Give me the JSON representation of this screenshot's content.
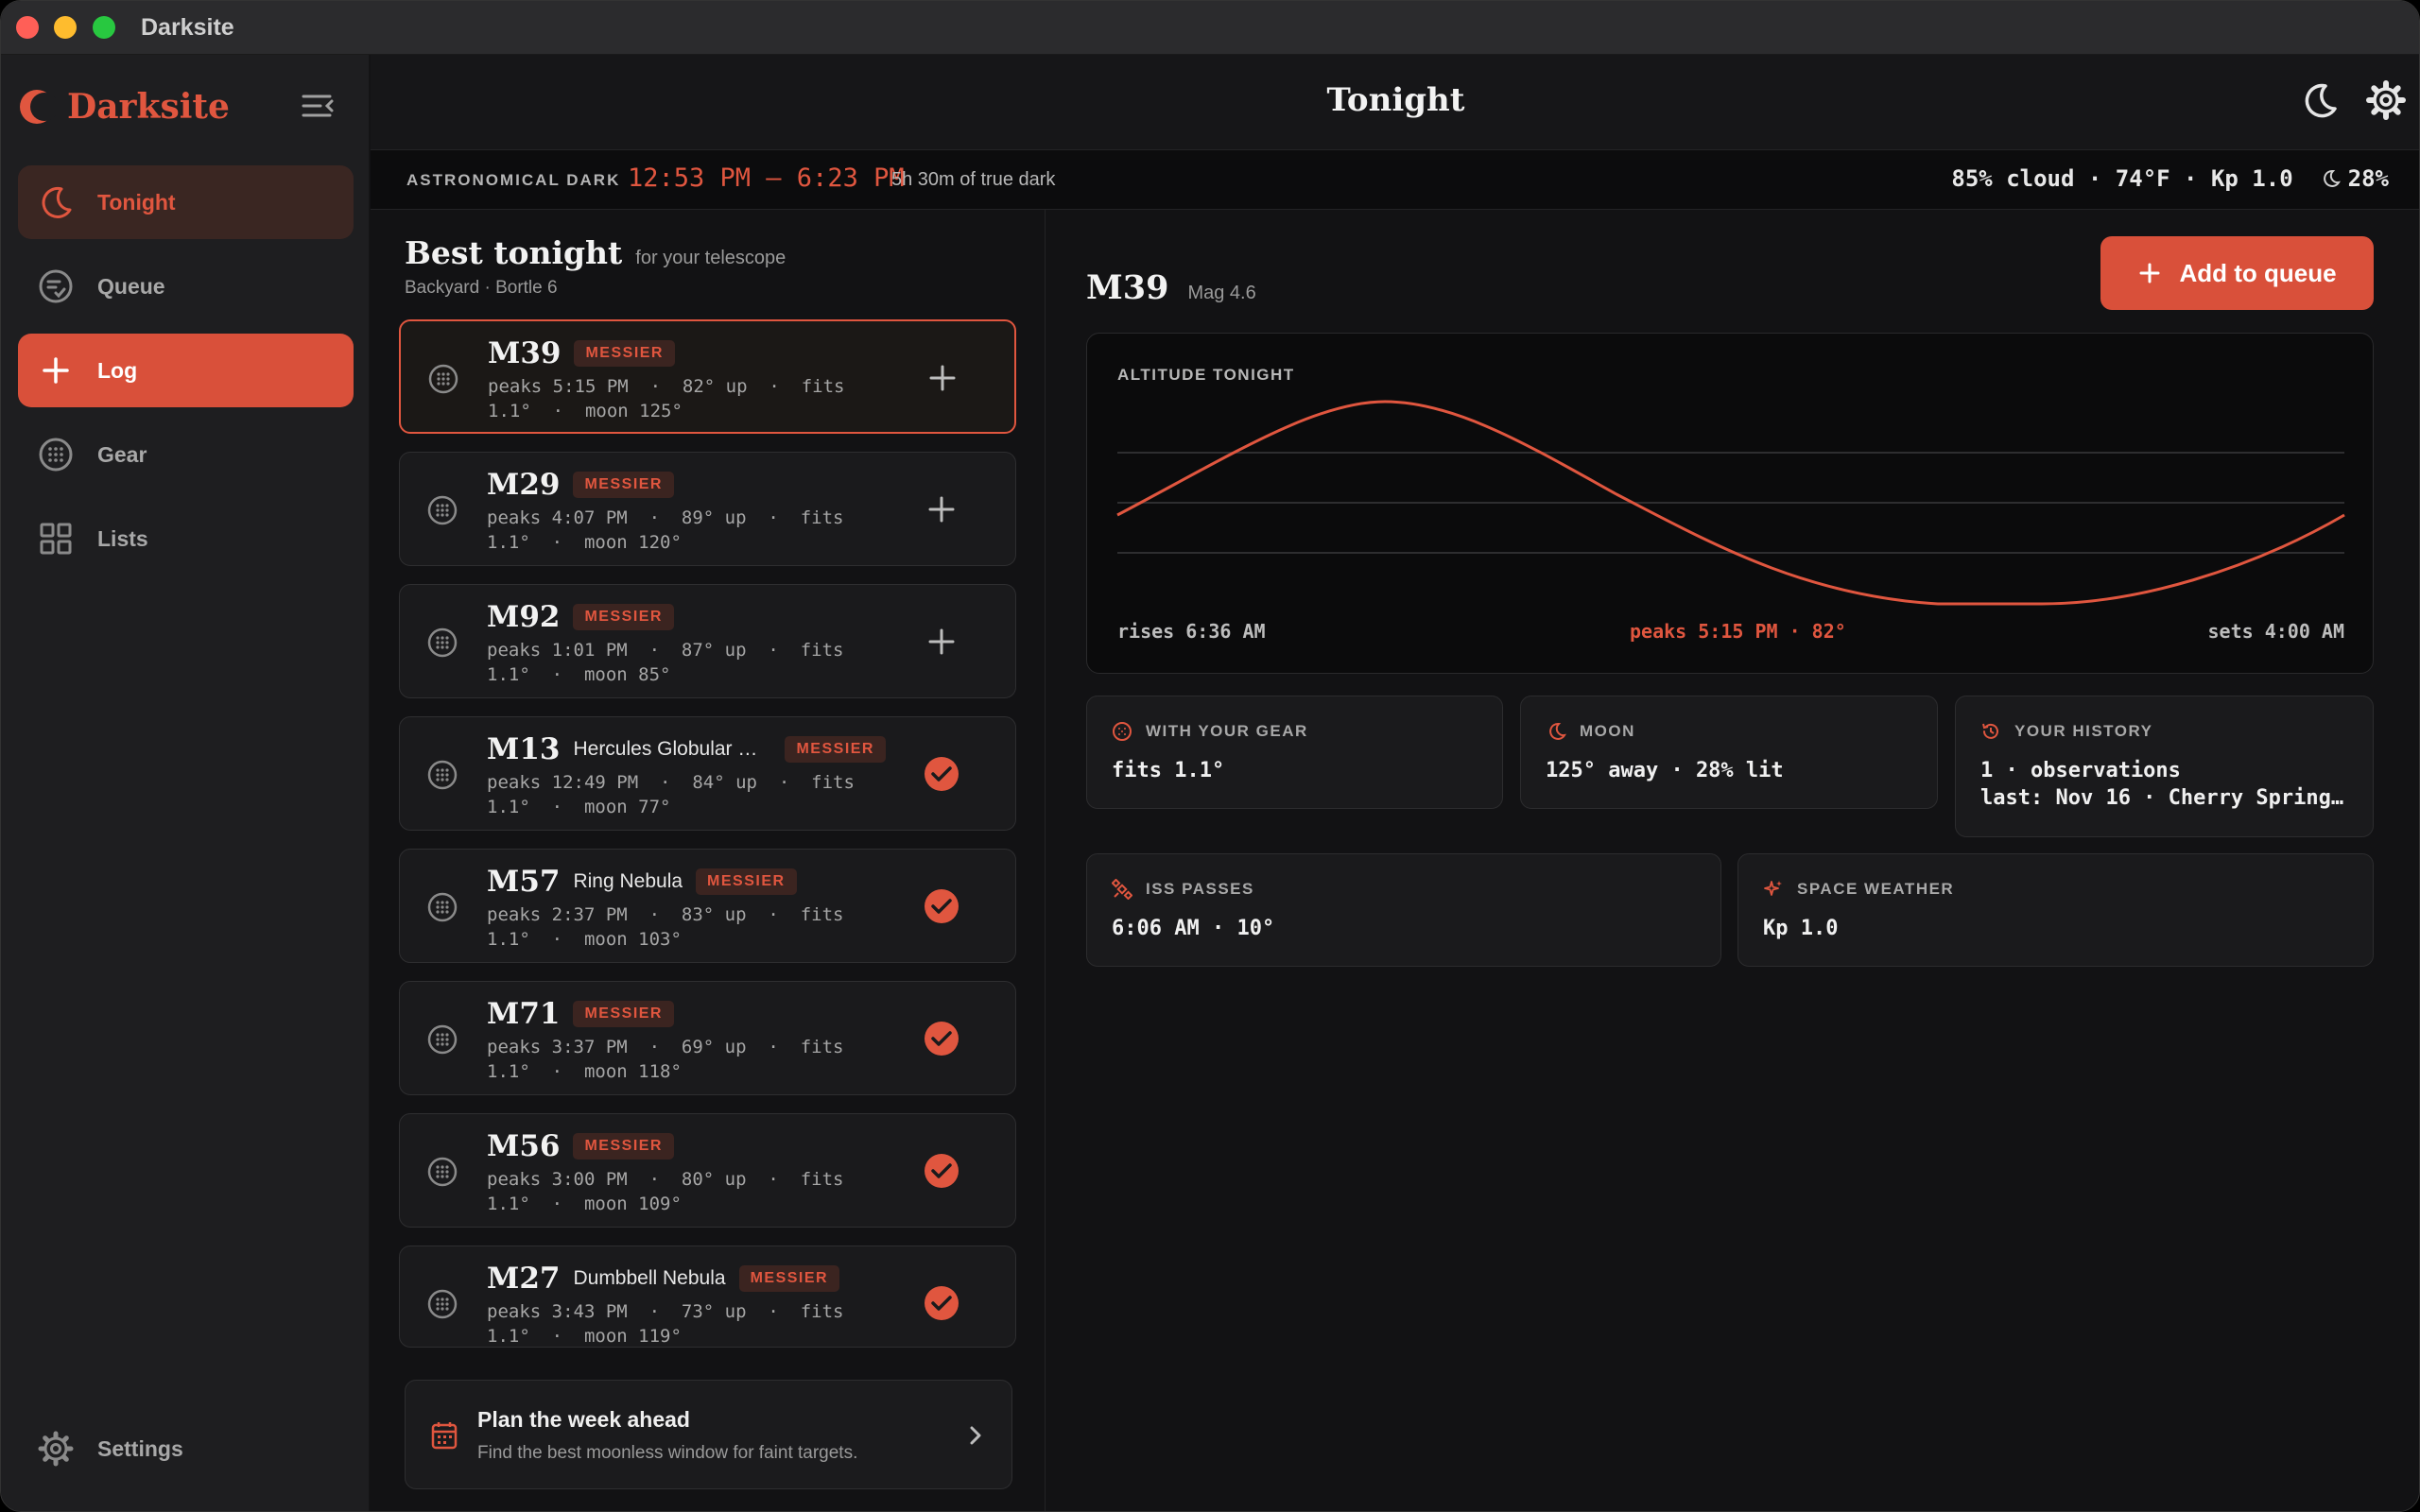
{
  "window": {
    "title": "Darksite"
  },
  "sidebar": {
    "brand": "Darksite",
    "items": [
      {
        "label": "Tonight",
        "icon": "moon-icon"
      },
      {
        "label": "Queue",
        "icon": "queue-icon"
      },
      {
        "label": "Log",
        "icon": "plus-icon"
      },
      {
        "label": "Gear",
        "icon": "globe-icon"
      },
      {
        "label": "Lists",
        "icon": "grid-icon"
      }
    ],
    "settings_label": "Settings"
  },
  "header": {
    "title": "Tonight"
  },
  "darkness": {
    "label": "ASTRONOMICAL DARK",
    "window": "12:53 PM – 6:23 PM",
    "duration": "5h 30m of true dark",
    "weather": "85% cloud · 74°F · Kp 1.0",
    "moon_pct": "28%"
  },
  "best": {
    "title": "Best tonight",
    "subtitle": "for your telescope",
    "location": "Backyard · Bortle 6",
    "targets": [
      {
        "name": "M39",
        "common": "",
        "badge": "MESSIER",
        "line1": "peaks 5:15 PM  ·  82° up  ·  fits",
        "line2": "1.1°  ·  moon 125°",
        "status": "add",
        "selected": true
      },
      {
        "name": "M29",
        "common": "",
        "badge": "MESSIER",
        "line1": "peaks 4:07 PM  ·  89° up  ·  fits",
        "line2": "1.1°  ·  moon 120°",
        "status": "add",
        "selected": false
      },
      {
        "name": "M92",
        "common": "",
        "badge": "MESSIER",
        "line1": "peaks 1:01 PM  ·  87° up  ·  fits",
        "line2": "1.1°  ·  moon 85°",
        "status": "add",
        "selected": false
      },
      {
        "name": "M13",
        "common": "Hercules Globular Cl...",
        "badge": "MESSIER",
        "line1": "peaks 12:49 PM  ·  84° up  ·  fits",
        "line2": "1.1°  ·  moon 77°",
        "status": "done",
        "selected": false
      },
      {
        "name": "M57",
        "common": "Ring Nebula",
        "badge": "MESSIER",
        "line1": "peaks 2:37 PM  ·  83° up  ·  fits",
        "line2": "1.1°  ·  moon 103°",
        "status": "done",
        "selected": false
      },
      {
        "name": "M71",
        "common": "",
        "badge": "MESSIER",
        "line1": "peaks 3:37 PM  ·  69° up  ·  fits",
        "line2": "1.1°  ·  moon 118°",
        "status": "done",
        "selected": false
      },
      {
        "name": "M56",
        "common": "",
        "badge": "MESSIER",
        "line1": "peaks 3:00 PM  ·  80° up  ·  fits",
        "line2": "1.1°  ·  moon 109°",
        "status": "done",
        "selected": false
      },
      {
        "name": "M27",
        "common": "Dumbbell Nebula",
        "badge": "MESSIER",
        "line1": "peaks 3:43 PM  ·  73° up  ·  fits",
        "line2": "1.1°  ·  moon 119°",
        "status": "done",
        "selected": false
      }
    ]
  },
  "plan": {
    "title": "Plan the week ahead",
    "subtitle": "Find the best moonless window for faint targets."
  },
  "detail": {
    "name": "M39",
    "mag": "Mag 4.6",
    "add_label": "Add to queue",
    "chart_label": "ALTITUDE TONIGHT",
    "rises": "rises 6:36 AM",
    "peaks": "peaks 5:15 PM · 82°",
    "sets": "sets 4:00 AM",
    "gear": {
      "label": "WITH YOUR GEAR",
      "value": "fits 1.1°"
    },
    "moon": {
      "label": "MOON",
      "value": "125° away · 28% lit"
    },
    "history": {
      "label": "YOUR HISTORY",
      "line1": "1 · observations",
      "line2": "last: Nov 16 · Cherry Spring…"
    },
    "iss": {
      "label": "ISS PASSES",
      "value": "6:06 AM · 10°"
    },
    "space": {
      "label": "SPACE WEATHER",
      "value": "Kp 1.0"
    }
  },
  "colors": {
    "accent": "#e0563f",
    "log_button": "#d9503a",
    "background": "#121214",
    "sidebar": "#1e1e20"
  }
}
